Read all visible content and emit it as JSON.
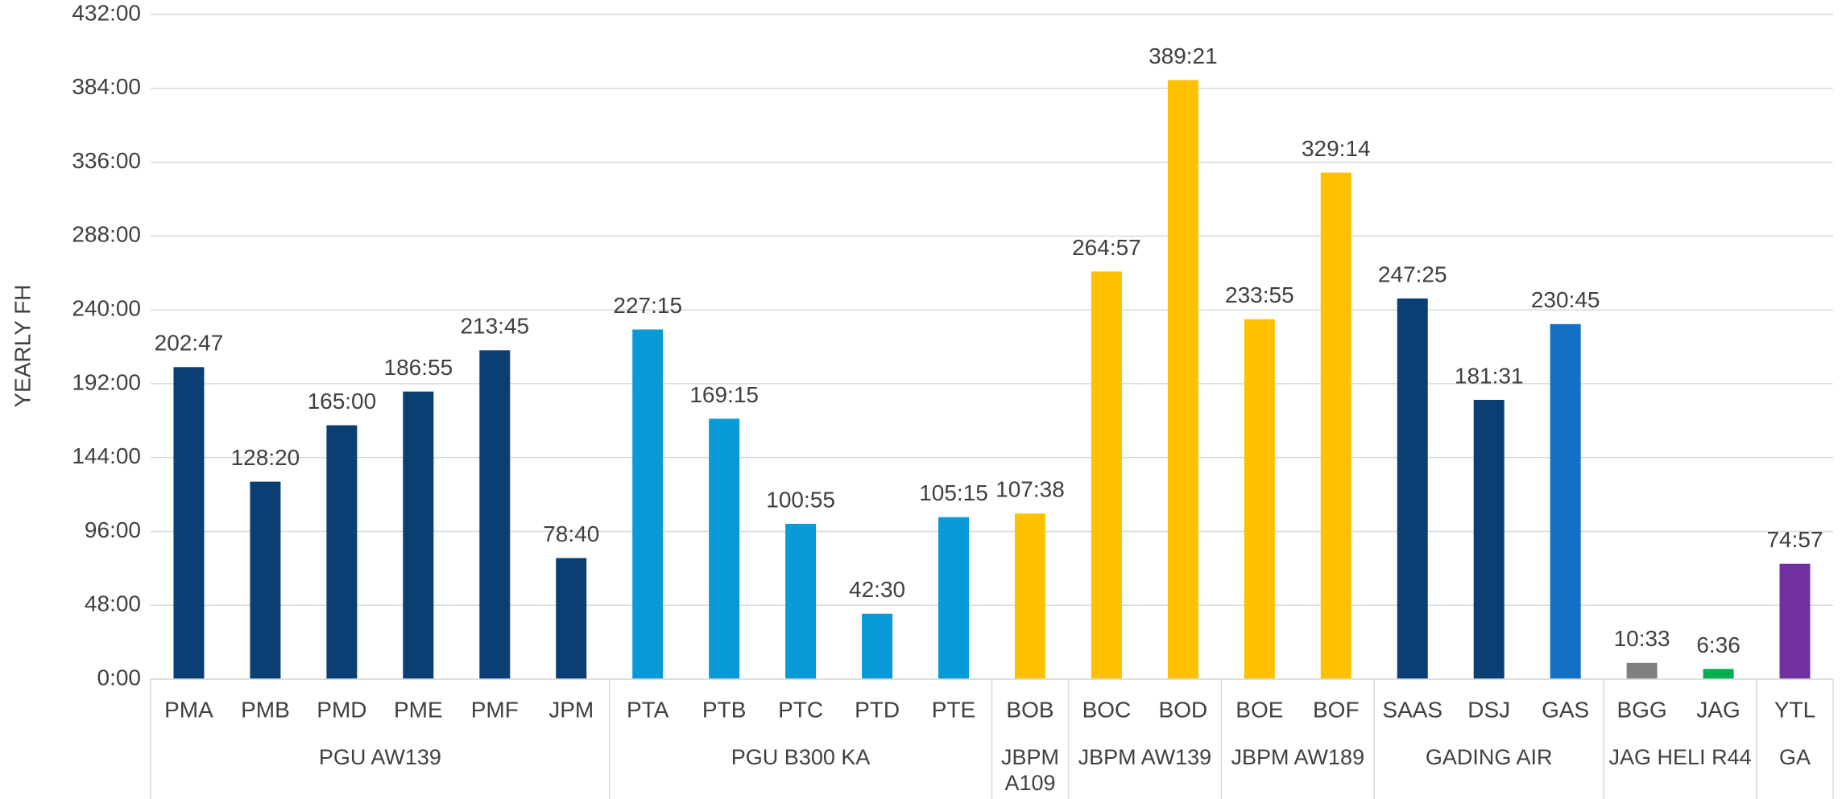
{
  "chart_data": {
    "type": "bar",
    "y_label": "YEARLY  FH",
    "groups": [
      {
        "name": "PGU AW139",
        "categories": [
          "PMA",
          "PMB",
          "PMD",
          "PME",
          "PMF",
          "JPM"
        ]
      },
      {
        "name": "PGU B300 KA",
        "categories": [
          "PTA",
          "PTB",
          "PTC",
          "PTD",
          "PTE"
        ]
      },
      {
        "name": "JBPM A109",
        "categories": [
          "BOB"
        ]
      },
      {
        "name": "JBPM AW139",
        "categories": [
          "BOC",
          "BOD"
        ]
      },
      {
        "name": "JBPM AW189",
        "categories": [
          "BOE",
          "BOF"
        ]
      },
      {
        "name": "GADING AIR",
        "categories": [
          "SAAS",
          "DSJ",
          "GAS"
        ]
      },
      {
        "name": "JAG HELI R44",
        "categories": [
          "BGG",
          "JAG"
        ]
      },
      {
        "name": "GA",
        "categories": [
          "YTL"
        ]
      }
    ],
    "values": [
      202.7833,
      128.3333,
      165,
      186.9167,
      213.75,
      78.6667,
      227.25,
      169.25,
      100.9167,
      42.5,
      105.25,
      107.6333,
      264.95,
      389.35,
      233.9167,
      329.2333,
      247.4167,
      181.5167,
      230.75,
      10.55,
      6.6,
      74.95
    ],
    "value_labels": [
      "202:47",
      "128:20",
      "165:00",
      "186:55",
      "213:45",
      "78:40",
      "227:15",
      "169:15",
      "100:55",
      "42:30",
      "105:15",
      "107:38",
      "264:57",
      "389:21",
      "233:55",
      "329:14",
      "247:25",
      "181:31",
      "230:45",
      "10:33",
      "6:36",
      "74:57"
    ],
    "colors": [
      "#0b3f73",
      "#0b3f73",
      "#0b3f73",
      "#0b3f73",
      "#0b3f73",
      "#0b3f73",
      "#079ad7",
      "#079ad7",
      "#079ad7",
      "#079ad7",
      "#079ad7",
      "#ffc000",
      "#ffc000",
      "#ffc000",
      "#ffc000",
      "#ffc000",
      "#0b3f73",
      "#0b3f73",
      "#1470c4",
      "#7f7f7f",
      "#00b050",
      "#7030a0"
    ],
    "ylim": [
      0,
      432
    ],
    "yticks": [
      {
        "value": 0,
        "label": "0:00"
      },
      {
        "value": 48,
        "label": "48:00"
      },
      {
        "value": 96,
        "label": "96:00"
      },
      {
        "value": 144,
        "label": "144:00"
      },
      {
        "value": 192,
        "label": "192:00"
      },
      {
        "value": 240,
        "label": "240:00"
      },
      {
        "value": 288,
        "label": "288:00"
      },
      {
        "value": 336,
        "label": "336:00"
      },
      {
        "value": 384,
        "label": "384:00"
      },
      {
        "value": 432,
        "label": "432:00"
      }
    ],
    "grid": true
  }
}
